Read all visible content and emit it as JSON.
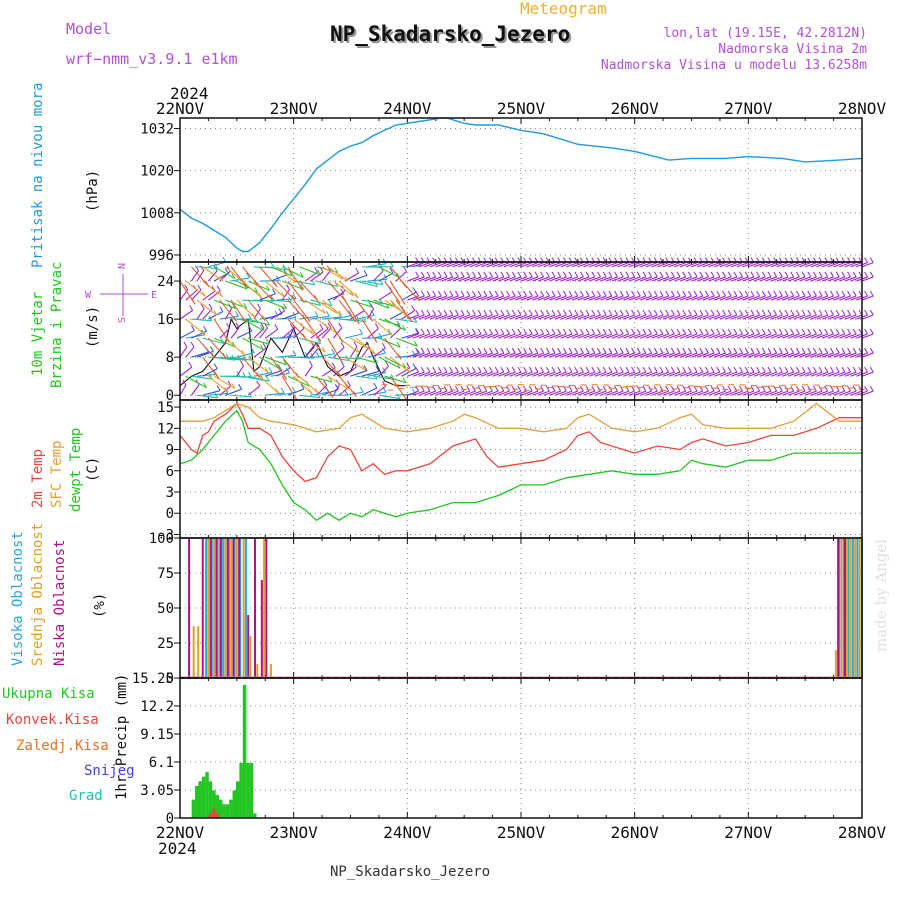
{
  "header": {
    "model_label": "Model",
    "model_name": "wrf−nmm_v3.9.1 e1km",
    "meteogram_label": "Meteogram",
    "station_title": "NP_Skadarsko_Jezero",
    "lonlat": "lon,lat (19.15E, 42.2812N)",
    "altitude": "Nadmorska Visina 2m",
    "model_altitude": "Nadmorska Visina u modelu 13.6258m",
    "footer_title": "NP_Skadarsko_Jezero",
    "watermark": "made by Angel"
  },
  "time_axis": {
    "year_top": "2024",
    "year_bottom": "2024",
    "labels": [
      "22NOV",
      "23NOV",
      "24NOV",
      "25NOV",
      "26NOV",
      "27NOV",
      "28NOV"
    ]
  },
  "colors": {
    "pressure": "#1e9be0",
    "temp2m": "#e8473c",
    "sfc": "#e3a03a",
    "dewpt": "#22c522",
    "high_cloud": "#2aa8d8",
    "mid_cloud": "#e0a020",
    "low_cloud": "#b0108a",
    "conv": "#e8473c",
    "snow": "#4040e0",
    "grad": "#20c0b0",
    "purple_text": "#b44fd8",
    "orange_text": "#f0b030"
  },
  "chart_data": [
    {
      "type": "line",
      "panel": "pressure",
      "ylabel": "Pritisak na nivou mora",
      "unit": "(hPa)",
      "ylim": [
        994,
        1035
      ],
      "yticks": [
        996,
        1008,
        1020,
        1032
      ],
      "x_days": [
        0,
        0.1,
        0.2,
        0.3,
        0.4,
        0.5,
        0.55,
        0.6,
        0.7,
        0.8,
        0.9,
        1.0,
        1.1,
        1.2,
        1.3,
        1.4,
        1.5,
        1.6,
        1.7,
        1.8,
        1.9,
        2.0,
        2.1,
        2.2,
        2.3,
        2.35,
        2.4,
        2.5,
        2.6,
        2.8,
        3.0,
        3.2,
        3.5,
        3.8,
        4.0,
        4.3,
        4.5,
        4.8,
        5.0,
        5.3,
        5.5,
        5.8,
        6.0
      ],
      "values": [
        1009,
        1006.5,
        1005,
        1003,
        1001,
        998,
        997,
        997,
        999.5,
        1003.5,
        1008,
        1012,
        1016,
        1020.5,
        1023,
        1025.5,
        1027,
        1028,
        1030,
        1031.5,
        1033,
        1033.5,
        1034,
        1034.5,
        1035,
        1035,
        1034.5,
        1033.5,
        1033,
        1033,
        1031.5,
        1030.5,
        1027.5,
        1026.5,
        1025.5,
        1023,
        1023.5,
        1023.5,
        1024,
        1023.5,
        1022.5,
        1023,
        1023.5
      ]
    },
    {
      "type": "barbs",
      "panel": "wind",
      "ylabel": "10m Vjetar",
      "ylabel2": "Brzina i Pravac",
      "unit": "(m/s)",
      "compass": {
        "n": "N",
        "s": "S",
        "e": "E",
        "w": "W"
      },
      "ylim": [
        -1,
        28
      ],
      "yticks": [
        0,
        8,
        16,
        24
      ],
      "x_days": [
        0,
        0.1,
        0.2,
        0.3,
        0.4,
        0.45,
        0.5,
        0.6,
        0.65,
        0.7,
        0.8,
        0.9,
        1.0,
        1.1,
        1.2,
        1.3,
        1.4,
        1.5,
        1.6,
        1.65,
        1.7,
        1.8,
        1.9,
        2.0
      ],
      "speed": [
        2,
        4,
        5,
        8,
        11,
        16,
        14,
        16,
        5,
        6,
        12,
        9,
        14,
        8,
        11,
        6,
        4,
        5,
        10,
        11,
        8,
        3,
        2,
        2
      ]
    },
    {
      "type": "line",
      "panel": "temperature",
      "ylabel": "2m Temp",
      "ylabel2": "SFC Temp",
      "ylabel3": "dewpt Temp",
      "unit": "(C)",
      "ylim": [
        -3.5,
        16
      ],
      "yticks": [
        -3,
        0,
        3,
        6,
        9,
        12,
        15
      ],
      "series": [
        {
          "name": "2m Temp",
          "x": [
            0,
            0.1,
            0.15,
            0.2,
            0.25,
            0.3,
            0.4,
            0.5,
            0.55,
            0.6,
            0.7,
            0.8,
            0.9,
            1.0,
            1.1,
            1.2,
            1.3,
            1.4,
            1.5,
            1.6,
            1.7,
            1.8,
            1.9,
            2.0,
            2.2,
            2.4,
            2.6,
            2.7,
            2.8,
            3.0,
            3.2,
            3.4,
            3.5,
            3.6,
            3.7,
            4.0,
            4.2,
            4.4,
            4.5,
            4.6,
            4.8,
            5.0,
            5.2,
            5.4,
            5.6,
            5.8,
            6.0
          ],
          "values": [
            11,
            9,
            8.5,
            11,
            11.5,
            13,
            14,
            15.5,
            14,
            12,
            12,
            11,
            8,
            6,
            4.5,
            5,
            8,
            9.5,
            9,
            6,
            7,
            5.5,
            6,
            6,
            7,
            9.5,
            10.5,
            8,
            6.5,
            7,
            7.5,
            9,
            11,
            11.5,
            10,
            8.5,
            9.5,
            9,
            10,
            10.5,
            9.5,
            10,
            11,
            11,
            12,
            13.5,
            13.5
          ]
        },
        {
          "name": "SFC Temp",
          "x": [
            0,
            0.2,
            0.3,
            0.4,
            0.5,
            0.6,
            0.7,
            0.8,
            1.0,
            1.2,
            1.4,
            1.5,
            1.6,
            1.8,
            2.0,
            2.2,
            2.4,
            2.5,
            2.6,
            2.8,
            3.0,
            3.2,
            3.4,
            3.5,
            3.6,
            3.8,
            4.0,
            4.2,
            4.4,
            4.5,
            4.6,
            4.8,
            5.0,
            5.2,
            5.4,
            5.6,
            5.8,
            6.0
          ],
          "values": [
            13,
            13,
            13.5,
            14.5,
            15.5,
            15,
            13.5,
            13,
            12.5,
            11.5,
            12,
            13.5,
            14,
            12,
            11.5,
            12,
            13,
            14,
            13.5,
            12,
            12,
            11.5,
            12,
            13.5,
            14,
            12,
            11.5,
            12,
            13.5,
            14,
            12.5,
            12,
            12,
            12,
            13,
            15.5,
            13,
            13
          ]
        },
        {
          "name": "dewpt Temp",
          "x": [
            0,
            0.1,
            0.2,
            0.3,
            0.4,
            0.5,
            0.55,
            0.6,
            0.7,
            0.8,
            0.9,
            1.0,
            1.1,
            1.2,
            1.3,
            1.4,
            1.5,
            1.6,
            1.7,
            1.8,
            1.9,
            2.0,
            2.2,
            2.4,
            2.6,
            2.8,
            3.0,
            3.2,
            3.4,
            3.6,
            3.8,
            4.0,
            4.2,
            4.4,
            4.5,
            4.6,
            4.8,
            5.0,
            5.2,
            5.4,
            5.6,
            5.8,
            6.0
          ],
          "values": [
            7,
            7.5,
            9,
            11,
            13,
            14.5,
            13,
            10,
            9,
            7,
            4,
            1.5,
            0.5,
            -1,
            0,
            -1,
            0,
            -0.5,
            0.5,
            0,
            -0.5,
            0,
            0.5,
            1.5,
            1.5,
            2.5,
            4,
            4,
            5,
            5.5,
            6,
            5.5,
            5.5,
            6,
            7.5,
            7,
            6.5,
            7.5,
            7.5,
            8.5,
            8.5,
            8.5,
            8.5
          ]
        }
      ]
    },
    {
      "type": "bar",
      "panel": "clouds",
      "ylabel": "Visoka Oblacnost",
      "ylabel2": "Srednja Oblacnost",
      "ylabel3": "Niska Oblacnost",
      "unit": "(%)",
      "ylim": [
        0,
        100
      ],
      "yticks": [
        0,
        25,
        50,
        75,
        100
      ],
      "series": [
        {
          "name": "Visoka Oblacnost",
          "x": [
            0.23,
            0.28,
            0.33,
            0.38,
            0.43,
            0.48,
            0.53,
            0.58,
            5.8,
            5.84,
            5.88,
            5.92,
            5.96,
            6.0
          ],
          "values": [
            100,
            100,
            100,
            100,
            100,
            100,
            100,
            100,
            100,
            100,
            100,
            100,
            100,
            100
          ]
        },
        {
          "name": "Srednja Oblacnost",
          "x": [
            0.12,
            0.16,
            0.25,
            0.3,
            0.35,
            0.4,
            0.45,
            0.5,
            0.56,
            0.62,
            0.68,
            0.74,
            0.8,
            5.77,
            5.82,
            5.86,
            5.9,
            5.94,
            5.98
          ],
          "values": [
            37,
            37,
            100,
            100,
            100,
            100,
            100,
            100,
            100,
            30,
            10,
            100,
            10,
            20,
            100,
            100,
            100,
            100,
            100
          ]
        },
        {
          "name": "Niska Oblacnost",
          "x": [
            0.08,
            0.2,
            0.27,
            0.32,
            0.36,
            0.42,
            0.47,
            0.52,
            0.6,
            0.66,
            0.72,
            0.76,
            5.79,
            5.85
          ],
          "values": [
            100,
            100,
            100,
            100,
            100,
            100,
            100,
            100,
            45,
            100,
            70,
            100,
            100,
            100
          ]
        }
      ]
    },
    {
      "type": "bar",
      "panel": "precip",
      "ylabel": "1hr Precip (mm)",
      "ylim": [
        0,
        15.25
      ],
      "yticks": [
        0,
        3.05,
        6.1,
        9.15,
        12.2,
        15.25
      ],
      "ytick_labels": [
        "0",
        "3.05",
        "6.1",
        "9.15",
        "12.2",
        "15.25"
      ],
      "legend": [
        "Ukupna Kisa",
        "Konvek.Kisa",
        "Zaledj.Kisa",
        "Snijeg",
        "Grad"
      ],
      "series": [
        {
          "name": "Ukupna Kisa",
          "x": [
            0.12,
            0.15,
            0.18,
            0.21,
            0.24,
            0.27,
            0.3,
            0.33,
            0.36,
            0.39,
            0.42,
            0.45,
            0.48,
            0.51,
            0.54,
            0.57,
            0.6,
            0.63,
            0.66
          ],
          "values": [
            2,
            3.5,
            4,
            4.5,
            5,
            4,
            3,
            2.5,
            2,
            1.5,
            1.5,
            2,
            3,
            4,
            6,
            14.5,
            6,
            6,
            0.5
          ]
        },
        {
          "name": "Konvek.Kisa",
          "x": [
            0.27,
            0.3,
            0.33
          ],
          "values": [
            0.5,
            1,
            0.5
          ]
        }
      ]
    }
  ]
}
